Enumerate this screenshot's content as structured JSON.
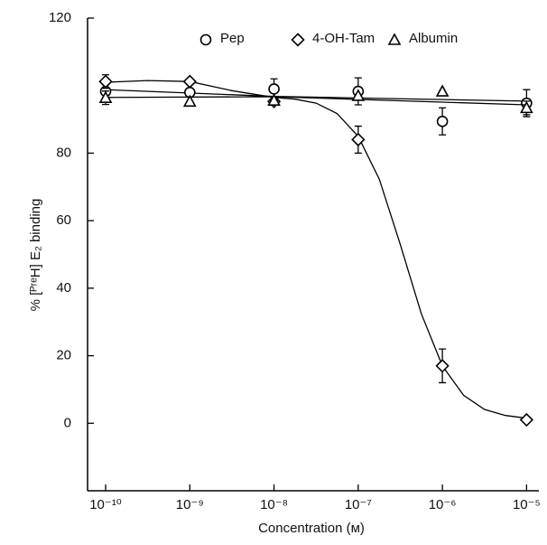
{
  "chart_data": {
    "type": "scatter",
    "xlabel": "Concentration (ᴍ)",
    "ylabel": "% [ᴾʳᵉH] E₂ binding",
    "log_x": true,
    "xlim": [
      6.1e-11,
      1.4e-05
    ],
    "ylim": [
      -20,
      120
    ],
    "xticks": [
      {
        "value": 1e-10,
        "label": "10⁻¹⁰"
      },
      {
        "value": 1e-09,
        "label": "10⁻⁹"
      },
      {
        "value": 1e-08,
        "label": "10⁻⁸"
      },
      {
        "value": 1e-07,
        "label": "10⁻⁷"
      },
      {
        "value": 1e-06,
        "label": "10⁻⁶"
      },
      {
        "value": 1e-05,
        "label": "10⁻⁵"
      }
    ],
    "yticks": [
      0,
      20,
      40,
      60,
      80,
      120
    ],
    "x": [
      1e-10,
      1e-09,
      1e-08,
      1e-07,
      1e-06,
      1e-05
    ],
    "series": [
      {
        "name": "Pep",
        "marker": "circle",
        "color": "#000000",
        "values": [
          98.3,
          98,
          99,
          98.3,
          89.4,
          94.8
        ],
        "errors": [
          2,
          null,
          3,
          4,
          4,
          4
        ],
        "fit_x": [
          1e-10,
          1e-08,
          1e-05
        ],
        "fit_values": [
          98.8,
          96.8,
          95.4
        ]
      },
      {
        "name": "4-OH-Tam",
        "marker": "diamond",
        "color": "#000000",
        "values": [
          101.2,
          101.2,
          95.3,
          84,
          17,
          1
        ],
        "errors": [
          2,
          null,
          null,
          4,
          5,
          null
        ],
        "fit_x": [
          1e-10,
          3.16e-10,
          1e-09,
          3.16e-09,
          1e-08,
          1.78e-08,
          3.16e-08,
          5.62e-08,
          1e-07,
          1.78e-07,
          3.16e-07,
          5.62e-07,
          1e-06,
          1.78e-06,
          3.16e-06,
          5.62e-06,
          1e-05
        ],
        "fit_values": [
          101,
          101.5,
          101.2,
          98.5,
          96.5,
          96,
          94.8,
          91.7,
          85,
          72.3,
          53,
          32.4,
          17,
          8.3,
          4.1,
          2.3,
          1.5
        ]
      },
      {
        "name": "Albumin",
        "marker": "triangle",
        "color": "#000000",
        "values": [
          96.4,
          95.3,
          95.6,
          97,
          98.3,
          93.4
        ],
        "errors": [
          2,
          null,
          null,
          null,
          null,
          2
        ],
        "fit_x": [
          1e-10,
          1e-08,
          1e-05
        ],
        "fit_values": [
          96.5,
          96.7,
          94.3
        ]
      }
    ]
  }
}
